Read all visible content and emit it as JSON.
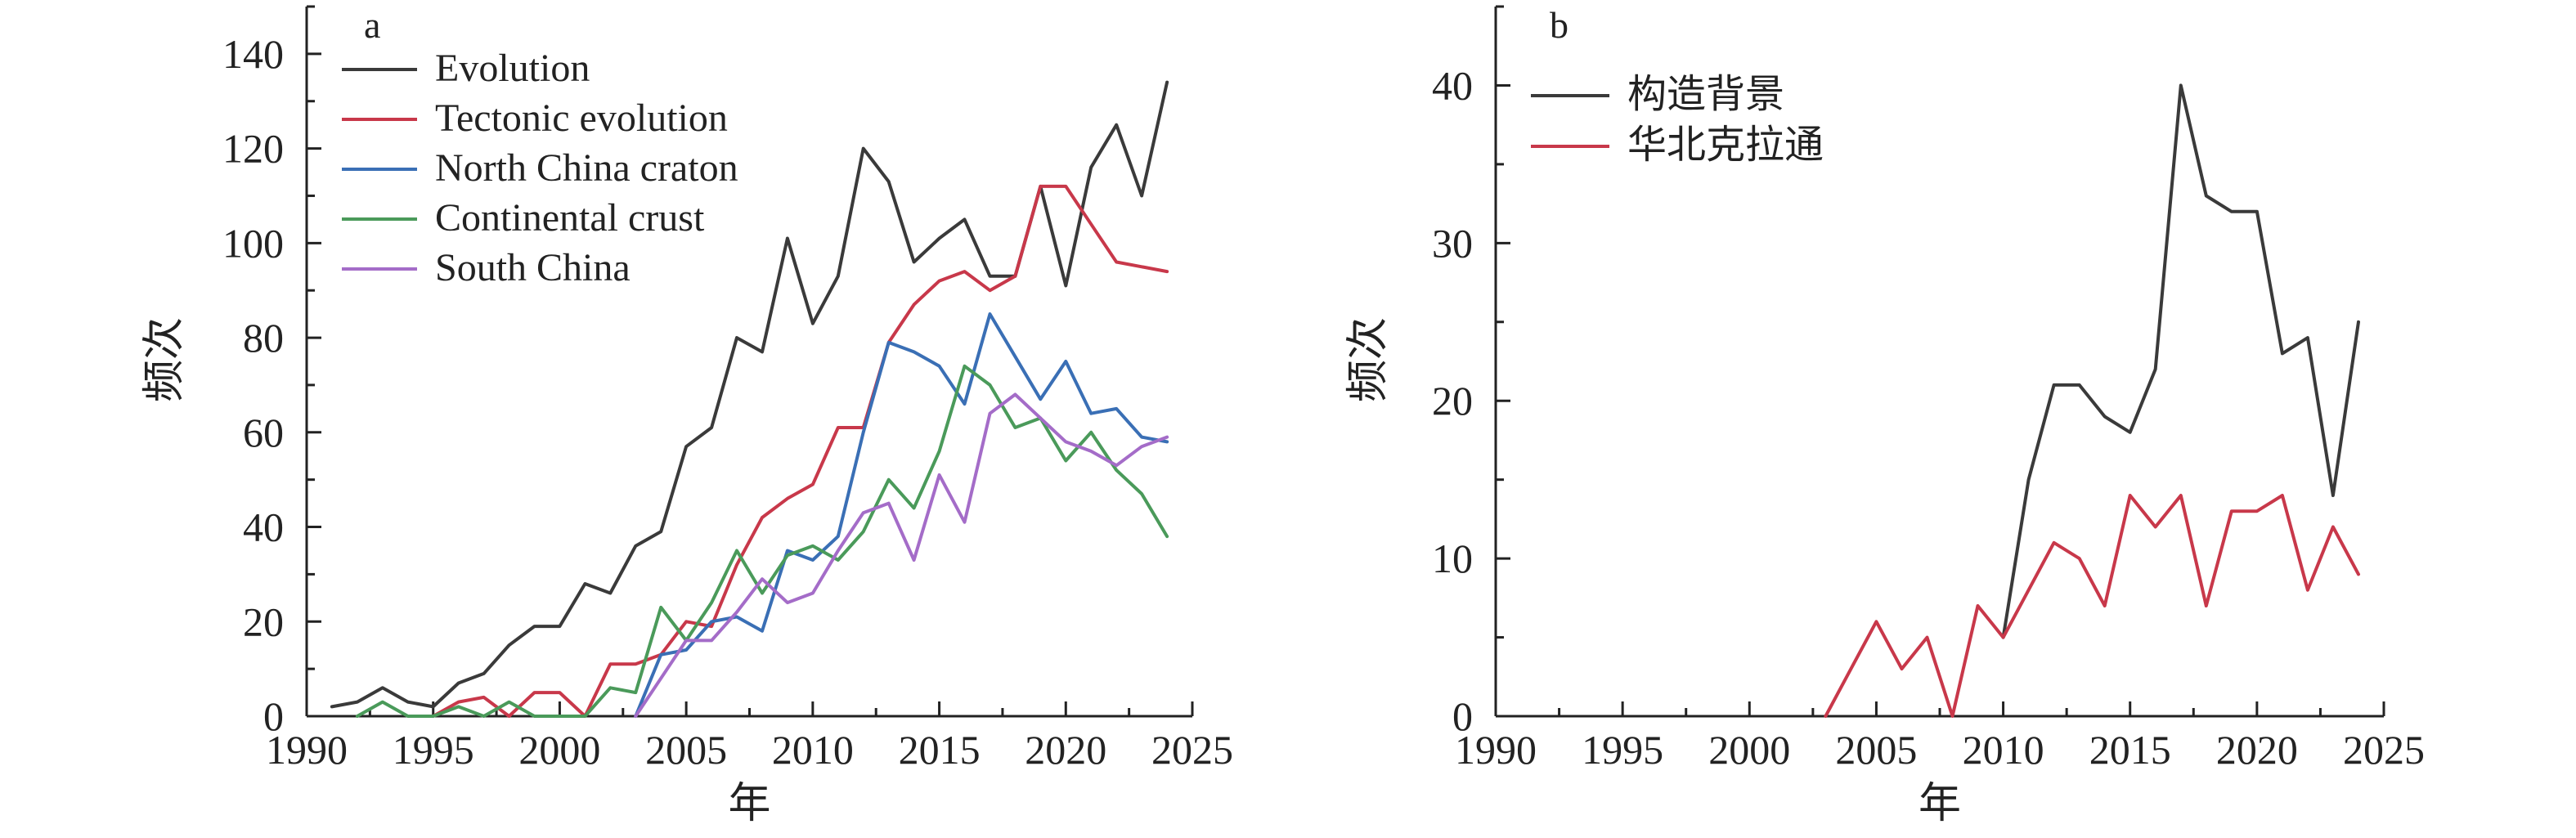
{
  "chart_data": [
    {
      "panel_label": "a",
      "type": "line",
      "xlabel": "年",
      "ylabel": "频次",
      "xlim": [
        1990,
        2025
      ],
      "ylim": [
        0,
        150
      ],
      "x_ticks": [
        1990,
        1995,
        2000,
        2005,
        2010,
        2015,
        2020,
        2025
      ],
      "y_ticks": [
        0,
        20,
        40,
        60,
        80,
        100,
        120,
        140
      ],
      "x_tick_labels": [
        "1990",
        "1995",
        "2000",
        "2005",
        "2010",
        "2015",
        "2020",
        "2025"
      ],
      "y_tick_labels": [
        "0",
        "20",
        "40",
        "60",
        "80",
        "100",
        "120",
        "140"
      ],
      "legend_position": "top-left",
      "grid": false,
      "series": [
        {
          "name": "Evolution",
          "color": "#3a3a3a",
          "points": [
            [
              1991,
              2
            ],
            [
              1992,
              3
            ],
            [
              1993,
              6
            ],
            [
              1994,
              3
            ],
            [
              1995,
              2
            ],
            [
              1996,
              7
            ],
            [
              1997,
              9
            ],
            [
              1998,
              15
            ],
            [
              1999,
              19
            ],
            [
              2000,
              19
            ],
            [
              2001,
              28
            ],
            [
              2002,
              26
            ],
            [
              2003,
              36
            ],
            [
              2004,
              39
            ],
            [
              2005,
              57
            ],
            [
              2006,
              61
            ],
            [
              2007,
              80
            ],
            [
              2008,
              77
            ],
            [
              2009,
              101
            ],
            [
              2010,
              83
            ],
            [
              2011,
              93
            ],
            [
              2012,
              120
            ],
            [
              2013,
              113
            ],
            [
              2014,
              96
            ],
            [
              2015,
              101
            ],
            [
              2016,
              105
            ],
            [
              2017,
              93
            ],
            [
              2018,
              93
            ],
            [
              2019,
              112
            ],
            [
              2020,
              91
            ],
            [
              2021,
              116
            ],
            [
              2022,
              125
            ],
            [
              2023,
              110
            ],
            [
              2024,
              134
            ]
          ]
        },
        {
          "name": "Tectonic evolution",
          "color": "#c8384a",
          "points": [
            [
              1995,
              0
            ],
            [
              1996,
              3
            ],
            [
              1997,
              4
            ],
            [
              1998,
              0
            ],
            [
              1999,
              5
            ],
            [
              2000,
              5
            ],
            [
              2001,
              0
            ],
            [
              2002,
              11
            ],
            [
              2003,
              11
            ],
            [
              2004,
              13
            ],
            [
              2005,
              20
            ],
            [
              2006,
              19
            ],
            [
              2007,
              32
            ],
            [
              2008,
              42
            ],
            [
              2009,
              46
            ],
            [
              2010,
              49
            ],
            [
              2011,
              61
            ],
            [
              2012,
              61
            ],
            [
              2013,
              79
            ],
            [
              2014,
              87
            ],
            [
              2015,
              92
            ],
            [
              2016,
              94
            ],
            [
              2017,
              90
            ],
            [
              2018,
              93
            ],
            [
              2019,
              112
            ],
            [
              2020,
              112
            ],
            [
              2021,
              104
            ],
            [
              2022,
              96
            ],
            [
              2023,
              95
            ],
            [
              2024,
              94
            ]
          ]
        },
        {
          "name": "North China craton",
          "color": "#3a6fb5",
          "points": [
            [
              2003,
              0
            ],
            [
              2004,
              13
            ],
            [
              2005,
              14
            ],
            [
              2006,
              20
            ],
            [
              2007,
              21
            ],
            [
              2008,
              18
            ],
            [
              2009,
              35
            ],
            [
              2010,
              33
            ],
            [
              2011,
              38
            ],
            [
              2012,
              60
            ],
            [
              2013,
              79
            ],
            [
              2014,
              77
            ],
            [
              2015,
              74
            ],
            [
              2016,
              66
            ],
            [
              2017,
              85
            ],
            [
              2018,
              76
            ],
            [
              2019,
              67
            ],
            [
              2020,
              75
            ],
            [
              2021,
              64
            ],
            [
              2022,
              65
            ],
            [
              2023,
              59
            ],
            [
              2024,
              58
            ]
          ]
        },
        {
          "name": "Continental crust",
          "color": "#4a9a5a",
          "points": [
            [
              1992,
              0
            ],
            [
              1993,
              3
            ],
            [
              1994,
              0
            ],
            [
              1995,
              0
            ],
            [
              1996,
              2
            ],
            [
              1997,
              0
            ],
            [
              1998,
              3
            ],
            [
              1999,
              0
            ],
            [
              2000,
              0
            ],
            [
              2001,
              0
            ],
            [
              2002,
              6
            ],
            [
              2003,
              5
            ],
            [
              2004,
              23
            ],
            [
              2005,
              16
            ],
            [
              2006,
              24
            ],
            [
              2007,
              35
            ],
            [
              2008,
              26
            ],
            [
              2009,
              34
            ],
            [
              2010,
              36
            ],
            [
              2011,
              33
            ],
            [
              2012,
              39
            ],
            [
              2013,
              50
            ],
            [
              2014,
              44
            ],
            [
              2015,
              56
            ],
            [
              2016,
              74
            ],
            [
              2017,
              70
            ],
            [
              2018,
              61
            ],
            [
              2019,
              63
            ],
            [
              2020,
              54
            ],
            [
              2021,
              60
            ],
            [
              2022,
              52
            ],
            [
              2023,
              47
            ],
            [
              2024,
              38
            ]
          ]
        },
        {
          "name": "South China",
          "color": "#a46cc8",
          "points": [
            [
              2003,
              0
            ],
            [
              2004,
              8
            ],
            [
              2005,
              16
            ],
            [
              2006,
              16
            ],
            [
              2007,
              22
            ],
            [
              2008,
              29
            ],
            [
              2009,
              24
            ],
            [
              2010,
              26
            ],
            [
              2011,
              35
            ],
            [
              2012,
              43
            ],
            [
              2013,
              45
            ],
            [
              2014,
              33
            ],
            [
              2015,
              51
            ],
            [
              2016,
              41
            ],
            [
              2017,
              64
            ],
            [
              2018,
              68
            ],
            [
              2019,
              63
            ],
            [
              2020,
              58
            ],
            [
              2021,
              56
            ],
            [
              2022,
              53
            ],
            [
              2023,
              57
            ],
            [
              2024,
              59
            ]
          ]
        }
      ]
    },
    {
      "panel_label": "b",
      "type": "line",
      "xlabel": "年",
      "ylabel": "频次",
      "xlim": [
        1990,
        2025
      ],
      "ylim": [
        0,
        45
      ],
      "x_ticks": [
        1990,
        1995,
        2000,
        2005,
        2010,
        2015,
        2020,
        2025
      ],
      "y_ticks": [
        0,
        10,
        20,
        30,
        40
      ],
      "x_tick_labels": [
        "1990",
        "1995",
        "2000",
        "2005",
        "2010",
        "2015",
        "2020",
        "2025"
      ],
      "y_tick_labels": [
        "0",
        "10",
        "20",
        "30",
        "40"
      ],
      "legend_position": "top-left",
      "grid": false,
      "series": [
        {
          "name": "构造背景",
          "color": "#3a3a3a",
          "points": [
            [
              2010,
              5
            ],
            [
              2011,
              15
            ],
            [
              2012,
              21
            ],
            [
              2013,
              21
            ],
            [
              2014,
              19
            ],
            [
              2015,
              18
            ],
            [
              2016,
              22
            ],
            [
              2017,
              40
            ],
            [
              2018,
              33
            ],
            [
              2019,
              32
            ],
            [
              2020,
              32
            ],
            [
              2021,
              23
            ],
            [
              2022,
              24
            ],
            [
              2023,
              14
            ],
            [
              2024,
              25
            ]
          ]
        },
        {
          "name": "华北克拉通",
          "color": "#c8384a",
          "points": [
            [
              2003,
              0
            ],
            [
              2004,
              3
            ],
            [
              2005,
              6
            ],
            [
              2006,
              3
            ],
            [
              2007,
              5
            ],
            [
              2008,
              0
            ],
            [
              2009,
              7
            ],
            [
              2010,
              5
            ],
            [
              2011,
              8
            ],
            [
              2012,
              11
            ],
            [
              2013,
              10
            ],
            [
              2014,
              7
            ],
            [
              2015,
              14
            ],
            [
              2016,
              12
            ],
            [
              2017,
              14
            ],
            [
              2018,
              7
            ],
            [
              2019,
              13
            ],
            [
              2020,
              13
            ],
            [
              2021,
              14
            ],
            [
              2022,
              8
            ],
            [
              2023,
              12
            ],
            [
              2024,
              9
            ]
          ]
        }
      ]
    }
  ]
}
